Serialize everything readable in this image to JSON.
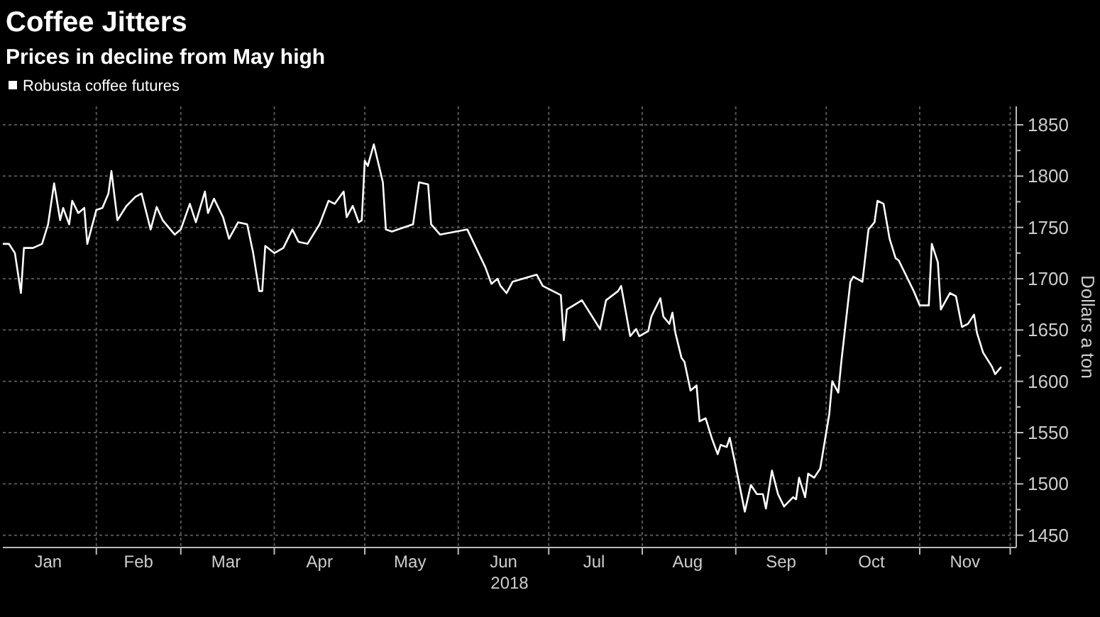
{
  "chart_data": {
    "type": "line",
    "title": "Coffee Jitters",
    "subtitle": "Prices in decline from May high",
    "ylabel": "Dollars a ton",
    "xlabel": "2018",
    "legend": "top left",
    "grid": true,
    "xlim": [
      "2018-01-01",
      "2018-12-03"
    ],
    "xticks": [
      {
        "value": "2018-01-16",
        "label": "Jan"
      },
      {
        "value": "2018-02-01",
        "label": null
      },
      {
        "value": "2018-02-15",
        "label": "Feb"
      },
      {
        "value": "2018-03-01",
        "label": null
      },
      {
        "value": "2018-03-16",
        "label": "Mar"
      },
      {
        "value": "2018-04-01",
        "label": null
      },
      {
        "value": "2018-04-16",
        "label": "Apr"
      },
      {
        "value": "2018-05-01",
        "label": null
      },
      {
        "value": "2018-05-16",
        "label": "May"
      },
      {
        "value": "2018-06-01",
        "label": null
      },
      {
        "value": "2018-06-16",
        "label": "Jun"
      },
      {
        "value": "2018-07-01",
        "label": null
      },
      {
        "value": "2018-07-16",
        "label": "Jul"
      },
      {
        "value": "2018-08-01",
        "label": null
      },
      {
        "value": "2018-08-16",
        "label": "Aug"
      },
      {
        "value": "2018-09-01",
        "label": null
      },
      {
        "value": "2018-09-16",
        "label": "Sep"
      },
      {
        "value": "2018-10-01",
        "label": null
      },
      {
        "value": "2018-10-16",
        "label": "Oct"
      },
      {
        "value": "2018-11-01",
        "label": null
      },
      {
        "value": "2018-11-16",
        "label": "Nov"
      },
      {
        "value": "2018-12-01",
        "label": null
      }
    ],
    "ylim": [
      1438,
      1868
    ],
    "yticks": [
      1450,
      {
        "value": 1475,
        "label": null
      },
      1500,
      {
        "value": 1525,
        "label": null
      },
      1550,
      {
        "value": 1575,
        "label": null
      },
      1600,
      {
        "value": 1625,
        "label": null
      },
      1650,
      {
        "value": 1675,
        "label": null
      },
      1700,
      {
        "value": 1725,
        "label": null
      },
      1750,
      {
        "value": 1775,
        "label": null
      },
      1800,
      {
        "value": 1825,
        "label": null
      },
      1850
    ],
    "series": [
      {
        "name": "Robusta coffee futures",
        "color": "#ffffff",
        "x": [
          "2018-01-01",
          "2018-01-03",
          "2018-01-05",
          "2018-01-07",
          "2018-01-08",
          "2018-01-11",
          "2018-01-14",
          "2018-01-16",
          "2018-01-18",
          "2018-01-20",
          "2018-01-21",
          "2018-01-23",
          "2018-01-24",
          "2018-01-26",
          "2018-01-28",
          "2018-01-29",
          "2018-02-01",
          "2018-02-03",
          "2018-02-05",
          "2018-02-06",
          "2018-02-08",
          "2018-02-11",
          "2018-02-14",
          "2018-02-16",
          "2018-02-19",
          "2018-02-21",
          "2018-02-23",
          "2018-02-27",
          "2018-03-01",
          "2018-03-04",
          "2018-03-06",
          "2018-03-09",
          "2018-03-10",
          "2018-03-12",
          "2018-03-15",
          "2018-03-17",
          "2018-03-20",
          "2018-03-23",
          "2018-03-25",
          "2018-03-27",
          "2018-03-28",
          "2018-03-29",
          "2018-04-01",
          "2018-04-04",
          "2018-04-07",
          "2018-04-09",
          "2018-04-12",
          "2018-04-16",
          "2018-04-19",
          "2018-04-21",
          "2018-04-24",
          "2018-04-25",
          "2018-04-27",
          "2018-04-29",
          "2018-04-30",
          "2018-05-01",
          "2018-05-02",
          "2018-05-04",
          "2018-05-07",
          "2018-05-08",
          "2018-05-10",
          "2018-05-12",
          "2018-05-17",
          "2018-05-19",
          "2018-05-22",
          "2018-05-23",
          "2018-05-26",
          "2018-06-04",
          "2018-06-10",
          "2018-06-12",
          "2018-06-14",
          "2018-06-15",
          "2018-06-17",
          "2018-06-19",
          "2018-06-27",
          "2018-06-29",
          "2018-07-05",
          "2018-07-06",
          "2018-07-07",
          "2018-07-12",
          "2018-07-15",
          "2018-07-18",
          "2018-07-20",
          "2018-07-24",
          "2018-07-25",
          "2018-07-28",
          "2018-07-30",
          "2018-07-31",
          "2018-08-03",
          "2018-08-04",
          "2018-08-07",
          "2018-08-08",
          "2018-08-10",
          "2018-08-11",
          "2018-08-12",
          "2018-08-14",
          "2018-08-15",
          "2018-08-17",
          "2018-08-19",
          "2018-08-20",
          "2018-08-22",
          "2018-08-24",
          "2018-08-26",
          "2018-08-27",
          "2018-08-29",
          "2018-08-30",
          "2018-09-01",
          "2018-09-04",
          "2018-09-06",
          "2018-09-08",
          "2018-09-10",
          "2018-09-11",
          "2018-09-13",
          "2018-09-15",
          "2018-09-17",
          "2018-09-20",
          "2018-09-21",
          "2018-09-22",
          "2018-09-24",
          "2018-09-25",
          "2018-09-27",
          "2018-09-29",
          "2018-10-02",
          "2018-10-03",
          "2018-10-05",
          "2018-10-06",
          "2018-10-09",
          "2018-10-10",
          "2018-10-13",
          "2018-10-15",
          "2018-10-17",
          "2018-10-18",
          "2018-10-20",
          "2018-10-22",
          "2018-10-24",
          "2018-10-25",
          "2018-10-30",
          "2018-11-01",
          "2018-11-04",
          "2018-11-05",
          "2018-11-07",
          "2018-11-08",
          "2018-11-11",
          "2018-11-13",
          "2018-11-15",
          "2018-11-17",
          "2018-11-19",
          "2018-11-20",
          "2018-11-22",
          "2018-11-25",
          "2018-11-26",
          "2018-11-28"
        ],
        "values": [
          1734,
          1734,
          1725,
          1686,
          1730,
          1730,
          1734,
          1753,
          1793,
          1757,
          1769,
          1753,
          1776,
          1764,
          1769,
          1734,
          1767,
          1769,
          1783,
          1805,
          1757,
          1771,
          1780,
          1783,
          1748,
          1770,
          1757,
          1743,
          1748,
          1773,
          1755,
          1785,
          1764,
          1778,
          1760,
          1739,
          1755,
          1753,
          1725,
          1688,
          1688,
          1732,
          1725,
          1730,
          1748,
          1736,
          1734,
          1753,
          1776,
          1773,
          1785,
          1760,
          1771,
          1755,
          1757,
          1815,
          1810,
          1831,
          1794,
          1748,
          1746,
          1748,
          1753,
          1794,
          1792,
          1753,
          1743,
          1748,
          1711,
          1695,
          1700,
          1693,
          1686,
          1697,
          1704,
          1693,
          1684,
          1640,
          1670,
          1679,
          1665,
          1651,
          1679,
          1688,
          1693,
          1644,
          1651,
          1644,
          1649,
          1663,
          1681,
          1663,
          1656,
          1667,
          1647,
          1623,
          1619,
          1591,
          1596,
          1561,
          1564,
          1545,
          1529,
          1538,
          1536,
          1545,
          1517,
          1473,
          1499,
          1490,
          1490,
          1476,
          1513,
          1490,
          1478,
          1487,
          1485,
          1506,
          1487,
          1510,
          1506,
          1515,
          1568,
          1600,
          1589,
          1619,
          1697,
          1702,
          1697,
          1748,
          1755,
          1776,
          1773,
          1739,
          1720,
          1718,
          1688,
          1674,
          1674,
          1734,
          1716,
          1670,
          1686,
          1683,
          1653,
          1656,
          1665,
          1647,
          1628,
          1614,
          1607,
          1614
        ]
      }
    ]
  }
}
